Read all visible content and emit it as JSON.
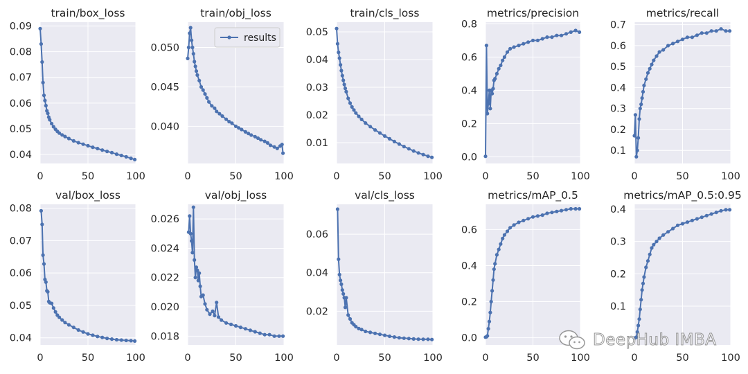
{
  "chart_data": [
    {
      "id": "train_box_loss",
      "type": "line",
      "title": "train/box_loss",
      "xlim": [
        0,
        100
      ],
      "ylim": [
        0.0365,
        0.0915
      ],
      "xticks": [
        0,
        50,
        100
      ],
      "yticks": [
        0.04,
        0.05,
        0.06,
        0.07,
        0.08,
        0.09
      ],
      "ytick_labels": [
        "0.04",
        "0.05",
        "0.06",
        "0.07",
        "0.08",
        "0.09"
      ],
      "series": [
        {
          "name": "results",
          "x": [
            0,
            1,
            2,
            3,
            4,
            5,
            6,
            7,
            8,
            9,
            10,
            12,
            14,
            16,
            18,
            20,
            23,
            26,
            30,
            35,
            40,
            45,
            50,
            55,
            60,
            65,
            70,
            75,
            80,
            85,
            90,
            95,
            99
          ],
          "y": [
            0.089,
            0.083,
            0.076,
            0.068,
            0.063,
            0.061,
            0.059,
            0.057,
            0.056,
            0.0545,
            0.0535,
            0.052,
            0.0508,
            0.0498,
            0.049,
            0.0483,
            0.0476,
            0.047,
            0.0462,
            0.0453,
            0.0446,
            0.044,
            0.0434,
            0.0428,
            0.0423,
            0.0417,
            0.0412,
            0.0407,
            0.0401,
            0.0396,
            0.0391,
            0.0385,
            0.038
          ]
        }
      ]
    },
    {
      "id": "train_obj_loss",
      "type": "line",
      "title": "train/obj_loss",
      "xlim": [
        0,
        100
      ],
      "ylim": [
        0.0353,
        0.0532
      ],
      "xticks": [
        0,
        50,
        100
      ],
      "yticks": [
        0.04,
        0.045,
        0.05
      ],
      "ytick_labels": [
        "0.040",
        "0.045",
        "0.050"
      ],
      "legend": {
        "label": "results",
        "position": "top-right"
      },
      "series": [
        {
          "name": "results",
          "x": [
            0,
            1,
            2,
            3,
            4,
            5,
            6,
            7,
            8,
            9,
            10,
            12,
            14,
            16,
            18,
            20,
            22,
            25,
            28,
            30,
            33,
            36,
            40,
            43,
            46,
            50,
            53,
            56,
            60,
            63,
            66,
            70,
            73,
            76,
            80,
            83,
            86,
            90,
            93,
            96,
            98,
            99
          ],
          "y": [
            0.0486,
            0.05,
            0.0518,
            0.0525,
            0.0509,
            0.05,
            0.0492,
            0.0482,
            0.0476,
            0.047,
            0.0465,
            0.0458,
            0.045,
            0.0446,
            0.0441,
            0.0436,
            0.0431,
            0.0426,
            0.0423,
            0.0419,
            0.0416,
            0.0413,
            0.0409,
            0.0406,
            0.0404,
            0.04,
            0.0398,
            0.0396,
            0.0393,
            0.0391,
            0.0389,
            0.0387,
            0.0385,
            0.0383,
            0.0381,
            0.0379,
            0.0376,
            0.0374,
            0.0372,
            0.0375,
            0.0377,
            0.0366
          ]
        }
      ]
    },
    {
      "id": "train_cls_loss",
      "type": "line",
      "title": "train/cls_loss",
      "xlim": [
        0,
        100
      ],
      "ylim": [
        0.0025,
        0.0535
      ],
      "xticks": [
        0,
        50,
        100
      ],
      "yticks": [
        0.01,
        0.02,
        0.03,
        0.04,
        0.05
      ],
      "ytick_labels": [
        "0.01",
        "0.02",
        "0.03",
        "0.04",
        "0.05"
      ],
      "series": [
        {
          "name": "results",
          "x": [
            0,
            1,
            2,
            3,
            4,
            5,
            6,
            7,
            8,
            9,
            10,
            12,
            14,
            16,
            18,
            20,
            23,
            26,
            30,
            35,
            40,
            45,
            50,
            55,
            60,
            65,
            70,
            75,
            80,
            85,
            90,
            95,
            99
          ],
          "y": [
            0.0512,
            0.0457,
            0.0426,
            0.0405,
            0.0381,
            0.036,
            0.0342,
            0.0325,
            0.031,
            0.0296,
            0.0284,
            0.026,
            0.0243,
            0.0229,
            0.0218,
            0.0207,
            0.0195,
            0.0184,
            0.0171,
            0.0158,
            0.0146,
            0.0135,
            0.0124,
            0.0114,
            0.0104,
            0.0095,
            0.0086,
            0.0078,
            0.007,
            0.0063,
            0.0057,
            0.0051,
            0.0047
          ]
        }
      ]
    },
    {
      "id": "metrics_precision",
      "type": "line",
      "title": "metrics/precision",
      "xlim": [
        0,
        100
      ],
      "ylim": [
        -0.04,
        0.81
      ],
      "xticks": [
        0,
        50,
        100
      ],
      "yticks": [
        0,
        0.2,
        0.4,
        0.6,
        0.8
      ],
      "ytick_labels": [
        "0.0",
        "0.2",
        "0.4",
        "0.6",
        "0.8"
      ],
      "series": [
        {
          "name": "results",
          "x": [
            0,
            1,
            2,
            3,
            4,
            5,
            6,
            7,
            8,
            9,
            10,
            12,
            14,
            16,
            18,
            20,
            23,
            26,
            30,
            35,
            40,
            45,
            50,
            55,
            60,
            65,
            70,
            75,
            80,
            85,
            90,
            95,
            99
          ],
          "y": [
            0.003,
            0.67,
            0.26,
            0.32,
            0.4,
            0.29,
            0.4,
            0.38,
            0.41,
            0.46,
            0.47,
            0.5,
            0.53,
            0.55,
            0.58,
            0.6,
            0.63,
            0.65,
            0.66,
            0.67,
            0.68,
            0.69,
            0.7,
            0.7,
            0.71,
            0.72,
            0.72,
            0.73,
            0.73,
            0.74,
            0.75,
            0.76,
            0.75
          ]
        }
      ]
    },
    {
      "id": "metrics_recall",
      "type": "line",
      "title": "metrics/recall",
      "xlim": [
        0,
        100
      ],
      "ylim": [
        0.038,
        0.712
      ],
      "xticks": [
        0,
        50,
        100
      ],
      "yticks": [
        0.1,
        0.2,
        0.3,
        0.4,
        0.5,
        0.6,
        0.7
      ],
      "ytick_labels": [
        "0.1",
        "0.2",
        "0.3",
        "0.4",
        "0.5",
        "0.6",
        "0.7"
      ],
      "series": [
        {
          "name": "results",
          "x": [
            0,
            1,
            2,
            3,
            4,
            5,
            6,
            7,
            8,
            9,
            10,
            12,
            14,
            16,
            18,
            20,
            23,
            26,
            30,
            35,
            40,
            45,
            50,
            55,
            60,
            65,
            70,
            75,
            80,
            85,
            90,
            95,
            99
          ],
          "y": [
            0.17,
            0.27,
            0.07,
            0.1,
            0.16,
            0.25,
            0.3,
            0.32,
            0.35,
            0.38,
            0.41,
            0.44,
            0.47,
            0.49,
            0.51,
            0.53,
            0.55,
            0.57,
            0.58,
            0.6,
            0.61,
            0.62,
            0.63,
            0.64,
            0.64,
            0.65,
            0.66,
            0.66,
            0.67,
            0.67,
            0.68,
            0.67,
            0.67
          ]
        }
      ]
    },
    {
      "id": "val_box_loss",
      "type": "line",
      "title": "val/box_loss",
      "xlim": [
        0,
        100
      ],
      "ylim": [
        0.0378,
        0.0812
      ],
      "xticks": [
        0,
        50,
        100
      ],
      "yticks": [
        0.04,
        0.05,
        0.06,
        0.07,
        0.08
      ],
      "ytick_labels": [
        "0.04",
        "0.05",
        "0.06",
        "0.07",
        "0.08"
      ],
      "series": [
        {
          "name": "results",
          "x": [
            1,
            2,
            3,
            4,
            5,
            6,
            7,
            8,
            9,
            10,
            12,
            14,
            16,
            18,
            20,
            23,
            26,
            30,
            35,
            40,
            45,
            50,
            55,
            60,
            65,
            70,
            75,
            80,
            85,
            90,
            95,
            99
          ],
          "y": [
            0.0792,
            0.075,
            0.0655,
            0.0628,
            0.058,
            0.0572,
            0.0545,
            0.0542,
            0.0512,
            0.0508,
            0.0506,
            0.0492,
            0.048,
            0.047,
            0.0463,
            0.0455,
            0.0447,
            0.044,
            0.0432,
            0.0424,
            0.0418,
            0.0412,
            0.0408,
            0.0404,
            0.0401,
            0.0398,
            0.0396,
            0.0394,
            0.0393,
            0.0392,
            0.0391,
            0.039
          ]
        }
      ]
    },
    {
      "id": "val_obj_loss",
      "type": "line",
      "title": "val/obj_loss",
      "xlim": [
        0,
        100
      ],
      "ylim": [
        0.0174,
        0.027
      ],
      "xticks": [
        0,
        50,
        100
      ],
      "yticks": [
        0.018,
        0.02,
        0.022,
        0.024,
        0.026
      ],
      "ytick_labels": [
        "0.018",
        "0.020",
        "0.022",
        "0.024",
        "0.026"
      ],
      "series": [
        {
          "name": "results",
          "x": [
            1,
            2,
            3,
            4,
            5,
            6,
            7,
            8,
            9,
            10,
            11,
            12,
            13,
            14,
            16,
            18,
            20,
            23,
            26,
            28,
            30,
            32,
            35,
            40,
            45,
            50,
            55,
            60,
            65,
            70,
            75,
            80,
            85,
            90,
            95,
            99
          ],
          "y": [
            0.0251,
            0.0262,
            0.025,
            0.0245,
            0.0237,
            0.0268,
            0.0232,
            0.022,
            0.0227,
            0.0225,
            0.0218,
            0.0223,
            0.0214,
            0.0207,
            0.0208,
            0.0202,
            0.0198,
            0.0195,
            0.0197,
            0.0194,
            0.0203,
            0.0193,
            0.0191,
            0.0189,
            0.0188,
            0.0187,
            0.0186,
            0.0185,
            0.0184,
            0.0183,
            0.0182,
            0.0181,
            0.0181,
            0.018,
            0.018,
            0.018
          ]
        }
      ]
    },
    {
      "id": "val_cls_loss",
      "type": "line",
      "title": "val/cls_loss",
      "xlim": [
        0,
        100
      ],
      "ylim": [
        0.0025,
        0.0755
      ],
      "xticks": [
        0,
        50,
        100
      ],
      "yticks": [
        0.02,
        0.04,
        0.06
      ],
      "ytick_labels": [
        "0.02",
        "0.04",
        "0.06"
      ],
      "series": [
        {
          "name": "results",
          "x": [
            1,
            2,
            3,
            4,
            5,
            6,
            7,
            8,
            9,
            10,
            12,
            14,
            16,
            18,
            20,
            23,
            26,
            30,
            35,
            40,
            45,
            50,
            55,
            60,
            65,
            70,
            75,
            80,
            85,
            90,
            95,
            99
          ],
          "y": [
            0.073,
            0.047,
            0.039,
            0.036,
            0.034,
            0.031,
            0.029,
            0.027,
            0.022,
            0.027,
            0.018,
            0.016,
            0.014,
            0.013,
            0.012,
            0.011,
            0.0105,
            0.0095,
            0.009,
            0.0085,
            0.008,
            0.0075,
            0.007,
            0.0066,
            0.0062,
            0.006,
            0.0058,
            0.0056,
            0.0055,
            0.0054,
            0.0054,
            0.0053
          ]
        }
      ]
    },
    {
      "id": "metrics_map_05",
      "type": "line",
      "title": "metrics/mAP_0.5",
      "xlim": [
        0,
        100
      ],
      "ylim": [
        -0.04,
        0.74
      ],
      "xticks": [
        0,
        50,
        100
      ],
      "yticks": [
        0,
        0.2,
        0.4,
        0.6
      ],
      "ytick_labels": [
        "0.0",
        "0.2",
        "0.4",
        "0.6"
      ],
      "series": [
        {
          "name": "results",
          "x": [
            0,
            1,
            2,
            3,
            4,
            5,
            6,
            7,
            8,
            9,
            10,
            12,
            14,
            16,
            18,
            20,
            23,
            26,
            30,
            35,
            40,
            45,
            50,
            55,
            60,
            65,
            70,
            75,
            80,
            85,
            90,
            95,
            99
          ],
          "y": [
            0.003,
            0.005,
            0.01,
            0.05,
            0.09,
            0.14,
            0.2,
            0.26,
            0.32,
            0.38,
            0.41,
            0.46,
            0.49,
            0.52,
            0.55,
            0.57,
            0.59,
            0.61,
            0.625,
            0.64,
            0.65,
            0.66,
            0.67,
            0.675,
            0.68,
            0.69,
            0.695,
            0.7,
            0.705,
            0.71,
            0.715,
            0.715,
            0.715
          ]
        }
      ]
    },
    {
      "id": "metrics_map_05_095",
      "type": "line",
      "title": "metrics/mAP_0.5:0.95",
      "xlim": [
        0,
        100
      ],
      "ylim": [
        -0.02,
        0.415
      ],
      "xticks": [
        0,
        50,
        100
      ],
      "yticks": [
        0.1,
        0.2,
        0.3,
        0.4
      ],
      "ytick_labels": [
        "0.1",
        "0.2",
        "0.3",
        "0.4"
      ],
      "series": [
        {
          "name": "results",
          "x": [
            0,
            1,
            2,
            3,
            4,
            5,
            6,
            7,
            8,
            9,
            10,
            12,
            14,
            16,
            18,
            20,
            23,
            26,
            30,
            35,
            40,
            45,
            50,
            55,
            60,
            65,
            70,
            75,
            80,
            85,
            90,
            95,
            99
          ],
          "y": [
            0.001,
            0.002,
            0.004,
            0.02,
            0.04,
            0.06,
            0.09,
            0.12,
            0.15,
            0.17,
            0.19,
            0.22,
            0.24,
            0.26,
            0.28,
            0.29,
            0.3,
            0.31,
            0.32,
            0.33,
            0.34,
            0.35,
            0.355,
            0.36,
            0.365,
            0.37,
            0.375,
            0.38,
            0.385,
            0.39,
            0.395,
            0.398,
            0.398
          ]
        }
      ]
    }
  ],
  "style": {
    "plot_bg": "#eaeaf2",
    "grid": "#ffffff",
    "line": "#4c72b0",
    "text": "#262626"
  },
  "watermark": {
    "text": "DeepHub IMBA",
    "icon": "wechat-icon"
  }
}
